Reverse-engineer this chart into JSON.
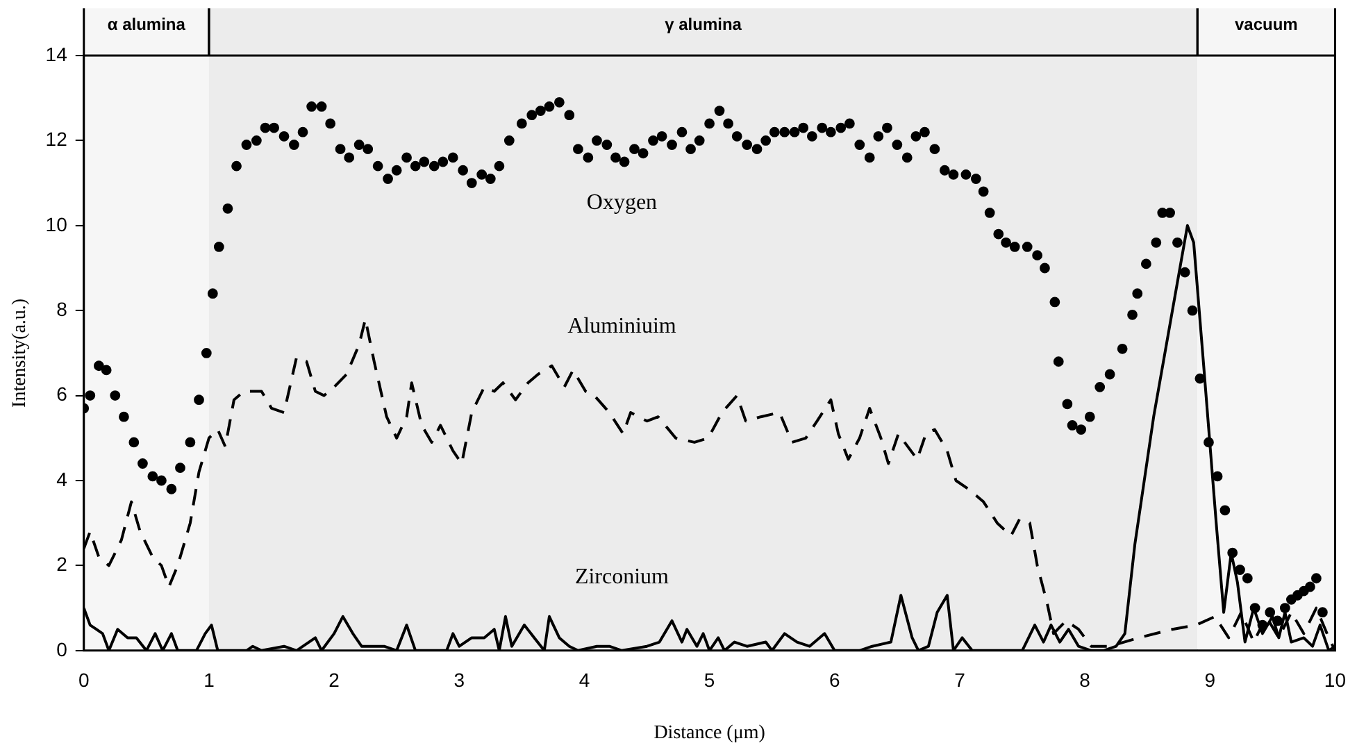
{
  "chart_data": {
    "type": "line",
    "xlabel": "Distance (μm)",
    "ylabel": "Intensity(a.u.)",
    "xlim": [
      0,
      10
    ],
    "xticks": [
      0,
      1,
      2,
      3,
      4,
      5,
      6,
      7,
      8,
      9,
      10
    ],
    "ylim": [
      0,
      14
    ],
    "yticks": [
      0,
      2,
      4,
      6,
      8,
      10,
      12,
      14
    ],
    "grid": false,
    "legend": false,
    "bands": [
      {
        "axis": "x",
        "from": 0,
        "to": 1,
        "label": "α alumina"
      },
      {
        "axis": "x",
        "from": 1,
        "to": 8.9,
        "label": "γ alumina"
      },
      {
        "axis": "x",
        "from": 8.9,
        "to": 10,
        "label": "vacuum"
      }
    ],
    "series": [
      {
        "name": "Oxygen",
        "type": "scatter",
        "marker": "circle",
        "color": "#000000",
        "x": [
          0,
          0.05,
          0.12,
          0.18,
          0.25,
          0.32,
          0.4,
          0.47,
          0.55,
          0.62,
          0.7,
          0.77,
          0.85,
          0.92,
          0.98,
          1.03,
          1.08,
          1.15,
          1.22,
          1.3,
          1.38,
          1.45,
          1.52,
          1.6,
          1.68,
          1.75,
          1.82,
          1.9,
          1.97,
          2.05,
          2.12,
          2.2,
          2.27,
          2.35,
          2.43,
          2.5,
          2.58,
          2.65,
          2.72,
          2.8,
          2.87,
          2.95,
          3.03,
          3.1,
          3.18,
          3.25,
          3.32,
          3.4,
          3.5,
          3.58,
          3.65,
          3.72,
          3.8,
          3.88,
          3.95,
          4.03,
          4.1,
          4.18,
          4.25,
          4.32,
          4.4,
          4.47,
          4.55,
          4.62,
          4.7,
          4.78,
          4.85,
          4.92,
          5,
          5.08,
          5.15,
          5.22,
          5.3,
          5.38,
          5.45,
          5.52,
          5.6,
          5.68,
          5.75,
          5.82,
          5.9,
          5.97,
          6.05,
          6.12,
          6.2,
          6.28,
          6.35,
          6.42,
          6.5,
          6.58,
          6.65,
          6.72,
          6.8,
          6.88,
          6.95,
          7.05,
          7.13,
          7.19,
          7.24,
          7.31,
          7.37,
          7.44,
          7.54,
          7.62,
          7.68,
          7.76,
          7.79,
          7.86,
          7.9,
          7.97,
          8.04,
          8.12,
          8.2,
          8.3,
          8.38,
          8.42,
          8.49,
          8.57,
          8.62,
          8.68,
          8.74,
          8.8,
          8.86,
          8.92,
          8.99,
          9.06,
          9.12,
          9.18,
          9.24,
          9.3,
          9.36,
          9.42,
          9.48,
          9.54,
          9.6,
          9.65,
          9.7,
          9.75,
          9.8,
          9.85,
          9.9
        ],
        "values": [
          5.7,
          6.0,
          6.7,
          6.6,
          6.0,
          5.5,
          4.9,
          4.4,
          4.1,
          4.0,
          3.8,
          4.3,
          4.9,
          5.9,
          7.0,
          8.4,
          9.5,
          10.4,
          11.4,
          11.9,
          12.0,
          12.3,
          12.3,
          12.1,
          11.9,
          12.2,
          12.8,
          12.8,
          12.4,
          11.8,
          11.6,
          11.9,
          11.8,
          11.4,
          11.1,
          11.3,
          11.6,
          11.4,
          11.5,
          11.4,
          11.5,
          11.6,
          11.3,
          11.0,
          11.2,
          11.1,
          11.4,
          12.0,
          12.4,
          12.6,
          12.7,
          12.8,
          12.9,
          12.6,
          11.8,
          11.6,
          12.0,
          11.9,
          11.6,
          11.5,
          11.8,
          11.7,
          12.0,
          12.1,
          11.9,
          12.2,
          11.8,
          12.0,
          12.4,
          12.7,
          12.4,
          12.1,
          11.9,
          11.8,
          12.0,
          12.2,
          12.2,
          12.2,
          12.3,
          12.1,
          12.3,
          12.2,
          12.3,
          12.4,
          11.9,
          11.6,
          12.1,
          12.3,
          11.9,
          11.6,
          12.1,
          12.2,
          11.8,
          11.3,
          11.2,
          11.2,
          11.1,
          10.8,
          10.3,
          9.8,
          9.6,
          9.5,
          9.5,
          9.3,
          9.0,
          8.2,
          6.8,
          5.8,
          5.3,
          5.2,
          5.5,
          6.2,
          6.5,
          7.1,
          7.9,
          8.4,
          9.1,
          9.6,
          10.3,
          10.3,
          9.6,
          8.9,
          8.0,
          6.4,
          4.9,
          4.1,
          3.3,
          2.3,
          1.9,
          1.7,
          1.0,
          0.6,
          0.9,
          0.7,
          1.0,
          1.2,
          1.3,
          1.4,
          1.5,
          1.7,
          0.9
        ]
      },
      {
        "name": "Aluminiuim",
        "type": "line",
        "line_style": "dashed",
        "color": "#000000",
        "x": [
          0,
          0.05,
          0.12,
          0.2,
          0.3,
          0.38,
          0.45,
          0.55,
          0.62,
          0.68,
          0.75,
          0.85,
          0.92,
          1.0,
          1.07,
          1.13,
          1.2,
          1.28,
          1.35,
          1.42,
          1.5,
          1.6,
          1.7,
          1.78,
          1.85,
          1.92,
          2.0,
          2.1,
          2.2,
          2.25,
          2.32,
          2.42,
          2.5,
          2.58,
          2.62,
          2.7,
          2.78,
          2.85,
          2.95,
          3.02,
          3.1,
          3.2,
          3.28,
          3.35,
          3.45,
          3.55,
          3.63,
          3.74,
          3.84,
          3.91,
          4.01,
          4.08,
          4.2,
          4.31,
          4.37,
          4.5,
          4.59,
          4.73,
          4.88,
          4.99,
          5.1,
          5.22,
          5.29,
          5.41,
          5.56,
          5.66,
          5.77,
          5.86,
          5.97,
          6.03,
          6.11,
          6.2,
          6.28,
          6.37,
          6.43,
          6.51,
          6.66,
          6.73,
          6.8,
          6.9,
          6.97,
          7.07,
          7.19,
          7.3,
          7.41,
          7.48,
          7.56,
          7.62,
          7.7,
          7.75,
          7.85,
          7.95,
          8.05,
          8.2,
          8.43,
          8.7,
          8.89,
          9.04,
          9.15,
          9.25,
          9.35,
          9.45,
          9.55,
          9.65,
          9.75,
          9.85,
          9.95,
          10
        ],
        "values": [
          2.4,
          2.8,
          2.2,
          2.0,
          2.6,
          3.5,
          2.8,
          2.2,
          2.0,
          1.5,
          2.0,
          3.0,
          4.2,
          5.0,
          5.2,
          4.8,
          5.9,
          6.1,
          6.1,
          6.1,
          5.7,
          5.6,
          6.9,
          6.8,
          6.1,
          6.0,
          6.2,
          6.5,
          7.2,
          7.8,
          6.8,
          5.5,
          5.0,
          5.5,
          6.3,
          5.3,
          4.9,
          5.3,
          4.7,
          4.4,
          5.6,
          6.2,
          6.1,
          6.3,
          5.9,
          6.3,
          6.5,
          6.7,
          6.2,
          6.6,
          6.1,
          6.0,
          5.6,
          5.1,
          5.6,
          5.4,
          5.5,
          5.0,
          4.9,
          5.0,
          5.6,
          6.0,
          5.4,
          5.5,
          5.6,
          4.9,
          5.0,
          5.4,
          5.9,
          5.1,
          4.5,
          5.0,
          5.7,
          5.0,
          4.4,
          5.1,
          4.5,
          5.1,
          5.2,
          4.7,
          4.0,
          3.8,
          3.5,
          3.0,
          2.7,
          3.1,
          3.0,
          2.0,
          1.1,
          0.4,
          0.7,
          0.5,
          0.1,
          0.1,
          0.3,
          0.5,
          0.6,
          0.8,
          0.3,
          0.9,
          0.2,
          0.8,
          0.3,
          0.9,
          0.4,
          1.0,
          0.3,
          0.0
        ]
      },
      {
        "name": "Zirconium",
        "type": "line",
        "line_style": "solid",
        "color": "#000000",
        "x": [
          0,
          0.05,
          0.1,
          0.15,
          0.2,
          0.27,
          0.35,
          0.42,
          0.5,
          0.57,
          0.63,
          0.7,
          0.75,
          0.9,
          0.97,
          1.02,
          1.07,
          1.3,
          1.35,
          1.42,
          1.6,
          1.7,
          1.85,
          1.9,
          2.0,
          2.07,
          2.15,
          2.22,
          2.4,
          2.5,
          2.58,
          2.65,
          2.9,
          2.95,
          3.0,
          3.1,
          3.2,
          3.28,
          3.32,
          3.37,
          3.42,
          3.52,
          3.6,
          3.68,
          3.72,
          3.8,
          3.88,
          3.95,
          4.1,
          4.2,
          4.3,
          4.5,
          4.6,
          4.7,
          4.78,
          4.82,
          4.9,
          4.95,
          5.0,
          5.07,
          5.12,
          5.2,
          5.3,
          5.45,
          5.5,
          5.6,
          5.7,
          5.8,
          5.92,
          6.0,
          6.2,
          6.3,
          6.45,
          6.53,
          6.62,
          6.67,
          6.75,
          6.82,
          6.9,
          6.95,
          7.02,
          7.1,
          7.5,
          7.6,
          7.67,
          7.73,
          7.8,
          7.87,
          7.95,
          8.05,
          8.15,
          8.25,
          8.32,
          8.4,
          8.55,
          8.7,
          8.82,
          8.87,
          8.95,
          9.05,
          9.11,
          9.17,
          9.22,
          9.28,
          9.35,
          9.42,
          9.5,
          9.55,
          9.6,
          9.65,
          9.75,
          9.82,
          9.88,
          9.95,
          10
        ],
        "values": [
          1.0,
          0.6,
          0.5,
          0.4,
          0.0,
          0.5,
          0.3,
          0.3,
          0.0,
          0.4,
          0.0,
          0.4,
          0.0,
          0.0,
          0.4,
          0.6,
          0.0,
          0.0,
          0.1,
          0.0,
          0.1,
          0.0,
          0.3,
          0.0,
          0.4,
          0.8,
          0.4,
          0.1,
          0.1,
          0.0,
          0.6,
          0.0,
          0.0,
          0.4,
          0.1,
          0.3,
          0.3,
          0.5,
          0.0,
          0.8,
          0.1,
          0.6,
          0.3,
          0.0,
          0.8,
          0.3,
          0.1,
          0.0,
          0.1,
          0.1,
          0.0,
          0.1,
          0.2,
          0.7,
          0.2,
          0.5,
          0.1,
          0.4,
          0.0,
          0.3,
          0.0,
          0.2,
          0.1,
          0.2,
          0.0,
          0.4,
          0.2,
          0.1,
          0.4,
          0.0,
          0.0,
          0.1,
          0.2,
          1.3,
          0.3,
          0.0,
          0.1,
          0.9,
          1.3,
          0.0,
          0.3,
          0.0,
          0.0,
          0.6,
          0.2,
          0.6,
          0.2,
          0.5,
          0.1,
          0.0,
          0.0,
          0.1,
          0.4,
          2.5,
          5.5,
          8.0,
          10.0,
          9.6,
          6.7,
          3.0,
          0.9,
          2.3,
          1.6,
          0.2,
          1.0,
          0.4,
          0.8,
          0.3,
          0.9,
          0.2,
          0.3,
          0.1,
          0.6,
          0.0,
          0.1
        ]
      }
    ]
  }
}
